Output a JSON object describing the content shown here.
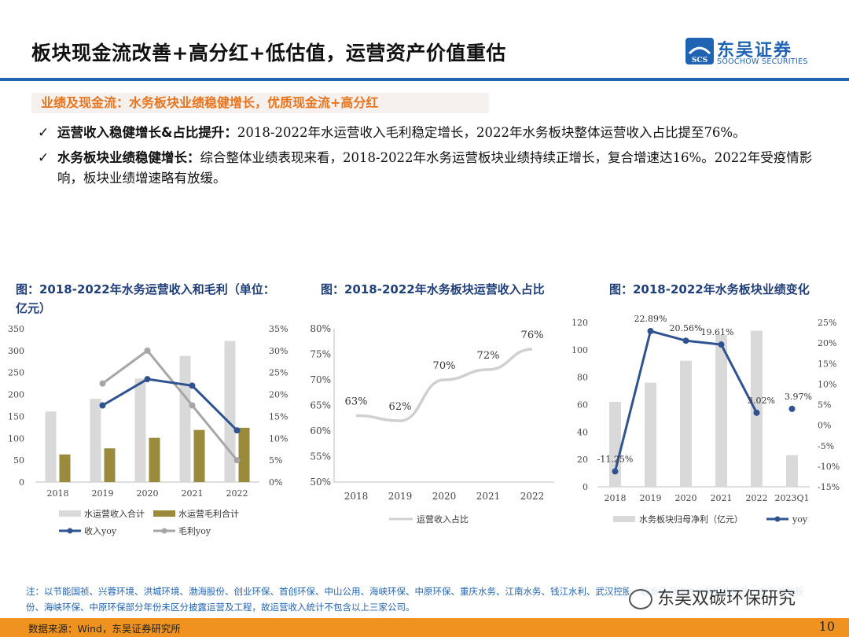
{
  "header": {
    "title": "板块现金流改善+高分红+低估值，运营资产价值重估",
    "logo_cn": "东吴证券",
    "logo_en": "SOOCHOW SECURITIES",
    "logo_mark": "SCS",
    "brand_color": "#1f63b3"
  },
  "subhead": "业绩及现金流：水务板块业绩稳健增长，优质现金流+高分红",
  "bullets": [
    {
      "bold": "运营收入稳健增长&占比提升：",
      "text": "2018-2022年水运营收入毛利稳定增长，2022年水务板块整体运营收入占比提至76%。"
    },
    {
      "bold": "水务板块业绩稳健增长：",
      "text": "综合整体业绩表现来看，2018-2022年水务运营板块业绩持续正增长，复合增速达16%。2022年受疫情影响，板块业绩增速略有放缓。"
    }
  ],
  "chart_titles": [
    "图：2018-2022年水务运营收入和毛利（单位：亿元）",
    "图：2018-2022年水务板块运营收入占比",
    "图：2018-2022年水务板块业绩变化"
  ],
  "chart_data": [
    {
      "type": "bar",
      "categories": [
        "2018",
        "2019",
        "2020",
        "2021",
        "2022"
      ],
      "series": [
        {
          "name": "水运营收入合计",
          "kind": "bar",
          "axis": "left",
          "color": "#d9d9d9",
          "values": [
            161,
            190,
            236,
            288,
            322
          ]
        },
        {
          "name": "水运营毛利合计",
          "kind": "bar",
          "axis": "left",
          "color": "#9a8a3c",
          "values": [
            63,
            77,
            101,
            119,
            124
          ]
        },
        {
          "name": "收入yoy",
          "kind": "line",
          "axis": "right",
          "color": "#2f5391",
          "values": [
            null,
            17.5,
            23.5,
            22.0,
            11.8
          ]
        },
        {
          "name": "毛利yoy",
          "kind": "line",
          "axis": "right",
          "color": "#a6a6a6",
          "values": [
            null,
            22.5,
            30.0,
            17.5,
            5.0
          ]
        }
      ],
      "yleft": {
        "min": 0,
        "max": 350,
        "step": 50,
        "ticks": [
          "0",
          "50",
          "100",
          "150",
          "200",
          "250",
          "300",
          "350"
        ]
      },
      "yright": {
        "min": 0,
        "max": 35,
        "step": 5,
        "ticks": [
          "0%",
          "5%",
          "10%",
          "15%",
          "20%",
          "25%",
          "30%",
          "35%"
        ]
      }
    },
    {
      "type": "line",
      "categories": [
        "2018",
        "2019",
        "2020",
        "2021",
        "2022"
      ],
      "series": [
        {
          "name": "运营收入占比",
          "color": "#d0d0d0",
          "values": [
            63,
            62,
            70,
            72,
            76
          ],
          "labels": [
            "63%",
            "62%",
            "70%",
            "72%",
            "76%"
          ]
        }
      ],
      "y": {
        "min": 50,
        "max": 80,
        "step": 5,
        "ticks": [
          "50%",
          "55%",
          "60%",
          "65%",
          "70%",
          "75%",
          "80%"
        ]
      }
    },
    {
      "type": "bar",
      "categories": [
        "2018",
        "2019",
        "2020",
        "2021",
        "2022",
        "2023Q1"
      ],
      "series": [
        {
          "name": "水务板块归母净利（亿元）",
          "kind": "bar",
          "axis": "left",
          "color": "#d9d9d9",
          "values": [
            62,
            76,
            92,
            111,
            114,
            23
          ]
        },
        {
          "name": "yoy",
          "kind": "line",
          "axis": "right",
          "color": "#2f5391",
          "values": [
            -11.25,
            22.89,
            20.56,
            19.61,
            3.02,
            3.97
          ],
          "labels": [
            "-11.25%",
            "22.89%",
            "20.56%",
            "19.61%",
            "3.02%",
            "3.97%"
          ]
        }
      ],
      "yleft": {
        "min": 0,
        "max": 120,
        "step": 20,
        "ticks": [
          "0",
          "20",
          "40",
          "60",
          "80",
          "100",
          "120"
        ]
      },
      "yright": {
        "min": -15,
        "max": 25,
        "step": 5,
        "ticks": [
          "-15%",
          "-10%",
          "-5%",
          "0%",
          "5%",
          "10%",
          "15%",
          "20%",
          "25%"
        ]
      }
    }
  ],
  "note": "注：以节能国祯、兴蓉环境、洪城环境、渤海股份、创业环保、首创环保、中山公用、海峡环保、中原环保、重庆水务、江南水务、钱江水利、武汉控股、联泰环保作为水务板块标的，由于渤海股份、海峡环保、中原环保部分年份未区分披露运营及工程，故运营收入统计不包含以上三家公司。",
  "watermark": "东吴双碳环保研究",
  "footer": {
    "source": "数据来源：Wind，东吴证券研究所",
    "page": "10"
  }
}
